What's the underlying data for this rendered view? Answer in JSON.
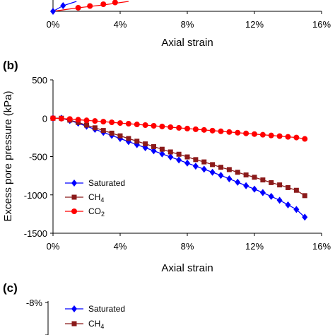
{
  "panel_a": {
    "xlabel": "Axial strain",
    "x_ticks": [
      "0%",
      "4%",
      "8%",
      "12%",
      "16%"
    ]
  },
  "panel_b": {
    "label": "(b)",
    "chart_data": {
      "type": "line",
      "xlabel": "Axial strain",
      "ylabel": "Excess pore pressure (kPa)",
      "xlim": [
        0,
        16
      ],
      "ylim": [
        -1500,
        500
      ],
      "x_ticks": [
        "0%",
        "4%",
        "8%",
        "12%",
        "16%"
      ],
      "y_ticks": [
        "500",
        "0",
        "-500",
        "-1000",
        "-1500"
      ],
      "legend_position": "bottom-left",
      "series": [
        {
          "name": "Saturated",
          "marker": "diamond",
          "color": "#0000ff",
          "x": [
            0,
            0.5,
            1,
            1.5,
            2,
            2.5,
            3,
            3.5,
            4,
            4.5,
            5,
            5.5,
            6,
            6.5,
            7,
            7.5,
            8,
            8.5,
            9,
            9.5,
            10,
            10.5,
            11,
            11.5,
            12,
            12.5,
            13,
            13.5,
            14,
            14.5,
            15
          ],
          "y": [
            0,
            0,
            -30,
            -65,
            -105,
            -145,
            -185,
            -225,
            -265,
            -305,
            -345,
            -385,
            -425,
            -465,
            -505,
            -545,
            -585,
            -625,
            -665,
            -705,
            -745,
            -790,
            -835,
            -880,
            -925,
            -970,
            -1020,
            -1070,
            -1130,
            -1190,
            -1290
          ]
        },
        {
          "name": "CH4",
          "marker": "square",
          "color": "#8b1a1a",
          "x": [
            0,
            0.5,
            1,
            1.5,
            2,
            2.5,
            3,
            3.5,
            4,
            4.5,
            5,
            5.5,
            6,
            6.5,
            7,
            7.5,
            8,
            8.5,
            9,
            9.5,
            10,
            10.5,
            11,
            11.5,
            12,
            12.5,
            13,
            13.5,
            14,
            14.5,
            15
          ],
          "y": [
            0,
            0,
            -25,
            -55,
            -90,
            -125,
            -160,
            -195,
            -230,
            -265,
            -300,
            -335,
            -370,
            -405,
            -440,
            -470,
            -505,
            -540,
            -570,
            -605,
            -640,
            -670,
            -705,
            -740,
            -770,
            -805,
            -840,
            -870,
            -905,
            -940,
            -1010
          ]
        },
        {
          "name": "CO2",
          "marker": "circle",
          "color": "#ff0000",
          "x": [
            0,
            0.5,
            1,
            1.5,
            2,
            2.5,
            3,
            3.5,
            4,
            4.5,
            5,
            5.5,
            6,
            6.5,
            7,
            7.5,
            8,
            8.5,
            9,
            9.5,
            10,
            10.5,
            11,
            11.5,
            12,
            12.5,
            13,
            13.5,
            14,
            14.5,
            15
          ],
          "y": [
            0,
            -5,
            -10,
            -20,
            -28,
            -36,
            -45,
            -54,
            -63,
            -72,
            -81,
            -90,
            -99,
            -108,
            -117,
            -126,
            -135,
            -144,
            -153,
            -162,
            -171,
            -180,
            -189,
            -198,
            -207,
            -216,
            -225,
            -234,
            -243,
            -252,
            -270
          ]
        }
      ]
    }
  },
  "panel_c": {
    "label": "(c)",
    "y_ticks": [
      "-8%"
    ],
    "legend": [
      "Saturated",
      "CH4"
    ]
  },
  "colors": {
    "saturated": "#0000ff",
    "ch4": "#8b1a1a",
    "co2": "#ff0000"
  }
}
